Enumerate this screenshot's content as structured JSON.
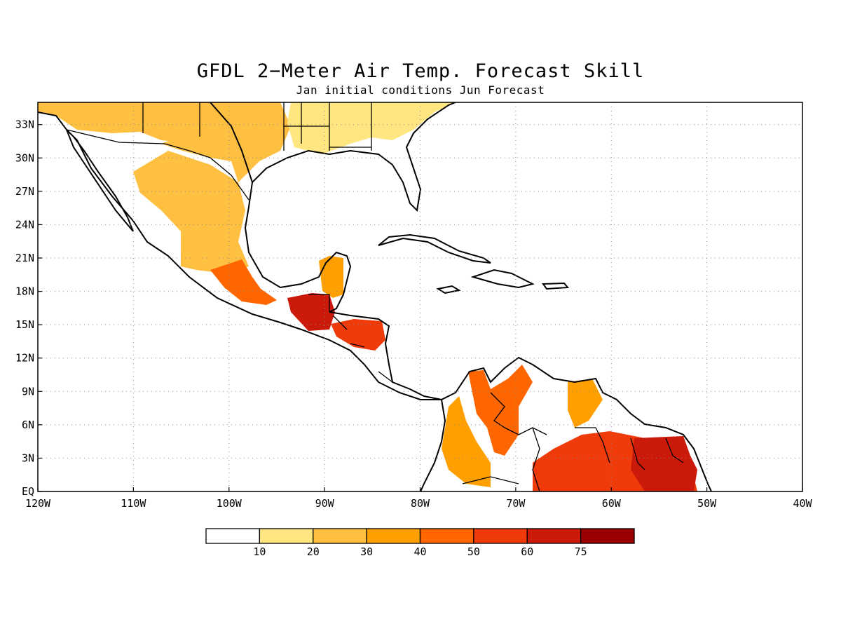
{
  "title": "GFDL 2−Meter Air Temp. Forecast Skill",
  "subtitle": "Jan initial conditions  Jun Forecast",
  "map": {
    "lon_range": [
      -120,
      -40
    ],
    "lat_range": [
      0,
      35
    ],
    "grid": "dotted",
    "x_ticks": [
      "120W",
      "110W",
      "100W",
      "90W",
      "80W",
      "70W",
      "60W",
      "50W",
      "40W"
    ],
    "y_ticks": [
      "EQ",
      "3N",
      "6N",
      "9N",
      "12N",
      "15N",
      "18N",
      "21N",
      "24N",
      "27N",
      "30N",
      "33N"
    ]
  },
  "colorbar": {
    "labels": [
      "10",
      "20",
      "30",
      "40",
      "50",
      "60",
      "75"
    ],
    "colors": [
      "#ffffff",
      "#ffe680",
      "#ffc042",
      "#ffa000",
      "#ff6600",
      "#ef3a0a",
      "#cc1a0a",
      "#9a0000"
    ]
  },
  "regions": [
    {
      "name": "southwest-us",
      "level": 2
    },
    {
      "name": "texas",
      "level": 2
    },
    {
      "name": "southeast-us",
      "level": 1
    },
    {
      "name": "mexico-plateau",
      "level": 2
    },
    {
      "name": "mexico-south",
      "level": 4
    },
    {
      "name": "guatemala",
      "level": 6
    },
    {
      "name": "yucatan",
      "level": 3
    },
    {
      "name": "honduras-nicaragua",
      "level": 5
    },
    {
      "name": "colombia-west",
      "level": 3
    },
    {
      "name": "venezuela",
      "level": 4
    },
    {
      "name": "guyana-region",
      "level": 3
    },
    {
      "name": "amazon-north",
      "level": 5
    },
    {
      "name": "suriname-french-guiana",
      "level": 6
    }
  ]
}
